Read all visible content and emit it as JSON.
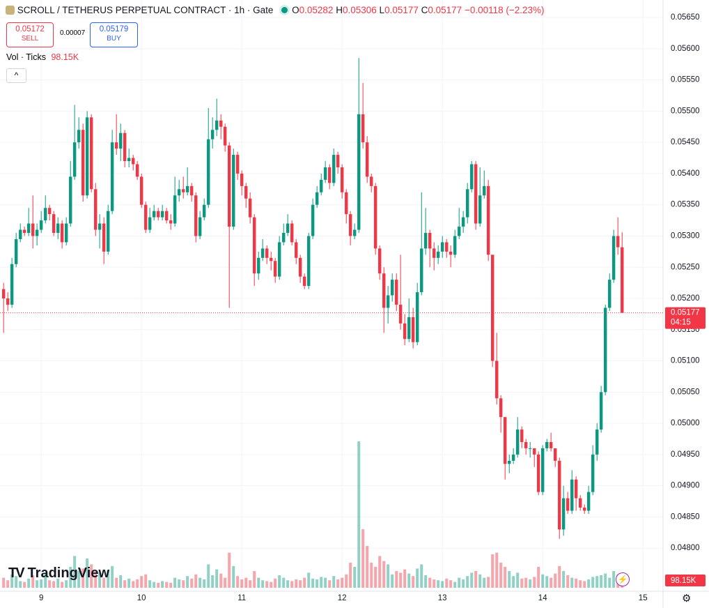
{
  "header": {
    "title": "SCROLL / TETHERUS PERPETUAL CONTRACT · 1h · Gate",
    "o_key": "O",
    "o": "0.05282",
    "h_key": "H",
    "h": "0.05306",
    "l_key": "L",
    "l": "0.05177",
    "c_key": "C",
    "c": "0.05177",
    "change": "−0.00118 (−2.23%)"
  },
  "trade": {
    "sell_price": "0.05172",
    "sell": "SELL",
    "spread": "0.00007",
    "buy_price": "0.05179",
    "buy": "BUY"
  },
  "volume_legend": {
    "label": "Vol · Ticks",
    "value": "98.15K"
  },
  "countdown": "04:15",
  "logo": "TradingView",
  "chart_data": {
    "type": "candlestick",
    "up_color": "#089981",
    "down_color": "#f23645",
    "grid": true,
    "xlim": [
      8.589,
      15.2
    ],
    "xticks": [
      9,
      10,
      11,
      12,
      13,
      14,
      15
    ],
    "ylim": [
      0.04731,
      0.05678
    ],
    "yticks": [
      {
        "value": 0.048,
        "label": "0.04800"
      },
      {
        "value": 0.0485,
        "label": "0.04850"
      },
      {
        "value": 0.049,
        "label": "0.04900"
      },
      {
        "value": 0.0495,
        "label": "0.04950"
      },
      {
        "value": 0.05,
        "label": "0.05000"
      },
      {
        "value": 0.0505,
        "label": "0.05050"
      },
      {
        "value": 0.051,
        "label": "0.05100"
      },
      {
        "value": 0.0515,
        "label": "0.05150"
      },
      {
        "value": 0.052,
        "label": "0.05200"
      },
      {
        "value": 0.0525,
        "label": "0.05250"
      },
      {
        "value": 0.053,
        "label": "0.05300"
      },
      {
        "value": 0.0535,
        "label": "0.05350"
      },
      {
        "value": 0.054,
        "label": "0.05400"
      },
      {
        "value": 0.0545,
        "label": "0.05450"
      },
      {
        "value": 0.055,
        "label": "0.05500"
      },
      {
        "value": 0.0555,
        "label": "0.05550"
      },
      {
        "value": 0.056,
        "label": "0.05600"
      },
      {
        "value": 0.0565,
        "label": "0.05650"
      }
    ],
    "x": [
      8.625,
      8.667,
      8.708,
      8.75,
      8.792,
      8.833,
      8.875,
      8.917,
      8.958,
      9,
      9.042,
      9.083,
      9.125,
      9.167,
      9.208,
      9.25,
      9.292,
      9.333,
      9.375,
      9.417,
      9.458,
      9.5,
      9.542,
      9.583,
      9.625,
      9.667,
      9.708,
      9.75,
      9.792,
      9.833,
      9.875,
      9.917,
      9.958,
      10,
      10.042,
      10.083,
      10.125,
      10.167,
      10.208,
      10.25,
      10.292,
      10.333,
      10.375,
      10.417,
      10.458,
      10.5,
      10.542,
      10.583,
      10.625,
      10.667,
      10.708,
      10.75,
      10.792,
      10.833,
      10.875,
      10.917,
      10.958,
      11,
      11.042,
      11.083,
      11.125,
      11.167,
      11.208,
      11.25,
      11.292,
      11.333,
      11.375,
      11.417,
      11.458,
      11.5,
      11.542,
      11.583,
      11.625,
      11.667,
      11.708,
      11.75,
      11.792,
      11.833,
      11.875,
      11.917,
      11.958,
      12,
      12.042,
      12.083,
      12.125,
      12.167,
      12.208,
      12.25,
      12.292,
      12.333,
      12.375,
      12.417,
      12.458,
      12.5,
      12.542,
      12.583,
      12.625,
      12.667,
      12.708,
      12.75,
      12.792,
      12.833,
      12.875,
      12.917,
      12.958,
      13,
      13.042,
      13.083,
      13.125,
      13.167,
      13.208,
      13.25,
      13.292,
      13.333,
      13.375,
      13.417,
      13.458,
      13.5,
      13.542,
      13.583,
      13.625,
      13.667,
      13.708,
      13.75,
      13.792,
      13.833,
      13.875,
      13.917,
      13.958,
      14,
      14.042,
      14.083,
      14.125,
      14.167,
      14.208,
      14.25,
      14.292,
      14.333,
      14.375,
      14.417,
      14.458,
      14.5,
      14.542,
      14.583,
      14.625,
      14.667,
      14.708,
      14.75,
      14.792
    ],
    "ohlc": [
      [
        0.05215,
        0.05225,
        0.05145,
        0.052
      ],
      [
        0.052,
        0.0521,
        0.0518,
        0.0519
      ],
      [
        0.0519,
        0.05265,
        0.05185,
        0.05255
      ],
      [
        0.05255,
        0.05305,
        0.0525,
        0.05295
      ],
      [
        0.05295,
        0.0532,
        0.0529,
        0.0531
      ],
      [
        0.0531,
        0.05315,
        0.053,
        0.05305
      ],
      [
        0.05305,
        0.05345,
        0.053,
        0.0532
      ],
      [
        0.0532,
        0.05365,
        0.0528,
        0.053
      ],
      [
        0.053,
        0.0532,
        0.05285,
        0.0531
      ],
      [
        0.0531,
        0.0534,
        0.05305,
        0.05325
      ],
      [
        0.05325,
        0.05365,
        0.0532,
        0.05345
      ],
      [
        0.05345,
        0.0535,
        0.05325,
        0.05335
      ],
      [
        0.05335,
        0.0534,
        0.053,
        0.05305
      ],
      [
        0.05305,
        0.0533,
        0.05295,
        0.0532
      ],
      [
        0.0532,
        0.05325,
        0.0528,
        0.0529
      ],
      [
        0.0529,
        0.0533,
        0.05285,
        0.0532
      ],
      [
        0.0532,
        0.0542,
        0.05315,
        0.05395
      ],
      [
        0.05395,
        0.0551,
        0.0539,
        0.0545
      ],
      [
        0.0545,
        0.0549,
        0.0544,
        0.0547
      ],
      [
        0.0547,
        0.0548,
        0.05355,
        0.05365
      ],
      [
        0.05365,
        0.055,
        0.0536,
        0.0549
      ],
      [
        0.0549,
        0.05495,
        0.0537,
        0.05375
      ],
      [
        0.05375,
        0.05385,
        0.053,
        0.0531
      ],
      [
        0.0531,
        0.05335,
        0.0528,
        0.0532
      ],
      [
        0.0532,
        0.0533,
        0.05255,
        0.05275
      ],
      [
        0.05275,
        0.0535,
        0.0527,
        0.0534
      ],
      [
        0.0534,
        0.0547,
        0.05335,
        0.0545
      ],
      [
        0.0545,
        0.05495,
        0.0543,
        0.0544
      ],
      [
        0.0544,
        0.0548,
        0.0542,
        0.05465
      ],
      [
        0.05465,
        0.0547,
        0.0541,
        0.0542
      ],
      [
        0.0542,
        0.0544,
        0.0541,
        0.05425
      ],
      [
        0.05425,
        0.0543,
        0.05405,
        0.05415
      ],
      [
        0.05415,
        0.0542,
        0.0539,
        0.05395
      ],
      [
        0.05395,
        0.054,
        0.05345,
        0.0535
      ],
      [
        0.0535,
        0.05355,
        0.05305,
        0.0531
      ],
      [
        0.0531,
        0.05345,
        0.05305,
        0.0533
      ],
      [
        0.0533,
        0.0535,
        0.05325,
        0.0534
      ],
      [
        0.0534,
        0.05345,
        0.05325,
        0.0533
      ],
      [
        0.0533,
        0.0535,
        0.05325,
        0.0534
      ],
      [
        0.0534,
        0.05345,
        0.0532,
        0.05325
      ],
      [
        0.05325,
        0.05335,
        0.0531,
        0.0532
      ],
      [
        0.0532,
        0.05395,
        0.05315,
        0.05365
      ],
      [
        0.05365,
        0.0539,
        0.05355,
        0.05375
      ],
      [
        0.05375,
        0.05395,
        0.0536,
        0.0537
      ],
      [
        0.0537,
        0.0541,
        0.05365,
        0.0538
      ],
      [
        0.0538,
        0.05385,
        0.05355,
        0.05365
      ],
      [
        0.05365,
        0.0537,
        0.0529,
        0.053
      ],
      [
        0.053,
        0.0534,
        0.05295,
        0.0533
      ],
      [
        0.0533,
        0.0536,
        0.05325,
        0.0535
      ],
      [
        0.0535,
        0.05505,
        0.05345,
        0.05455
      ],
      [
        0.05455,
        0.0549,
        0.0544,
        0.0547
      ],
      [
        0.0547,
        0.0552,
        0.0546,
        0.05485
      ],
      [
        0.05485,
        0.05495,
        0.05455,
        0.05475
      ],
      [
        0.05475,
        0.0548,
        0.05435,
        0.05445
      ],
      [
        0.05445,
        0.0545,
        0.05185,
        0.05315
      ],
      [
        0.05315,
        0.0544,
        0.0531,
        0.0543
      ],
      [
        0.0543,
        0.05435,
        0.0539,
        0.054
      ],
      [
        0.054,
        0.05405,
        0.05365,
        0.0538
      ],
      [
        0.0538,
        0.05385,
        0.05345,
        0.0536
      ],
      [
        0.0536,
        0.0537,
        0.0532,
        0.0533
      ],
      [
        0.0533,
        0.05335,
        0.0522,
        0.0524
      ],
      [
        0.0524,
        0.05275,
        0.0523,
        0.05265
      ],
      [
        0.05265,
        0.05295,
        0.0526,
        0.0528
      ],
      [
        0.0528,
        0.05285,
        0.05255,
        0.05265
      ],
      [
        0.05265,
        0.05275,
        0.05245,
        0.0526
      ],
      [
        0.0526,
        0.05265,
        0.05225,
        0.05235
      ],
      [
        0.05235,
        0.053,
        0.0523,
        0.0529
      ],
      [
        0.0529,
        0.0532,
        0.05285,
        0.05305
      ],
      [
        0.05305,
        0.05335,
        0.053,
        0.0532
      ],
      [
        0.0532,
        0.05325,
        0.05285,
        0.0529
      ],
      [
        0.0529,
        0.05295,
        0.05255,
        0.05265
      ],
      [
        0.05265,
        0.0527,
        0.05225,
        0.05235
      ],
      [
        0.05235,
        0.0524,
        0.05215,
        0.0522
      ],
      [
        0.0522,
        0.05305,
        0.05215,
        0.053
      ],
      [
        0.053,
        0.0536,
        0.05295,
        0.0535
      ],
      [
        0.0535,
        0.0538,
        0.05345,
        0.0537
      ],
      [
        0.0537,
        0.054,
        0.05365,
        0.0539
      ],
      [
        0.0539,
        0.0542,
        0.05385,
        0.0541
      ],
      [
        0.0541,
        0.05415,
        0.05375,
        0.05385
      ],
      [
        0.05385,
        0.0544,
        0.0538,
        0.0543
      ],
      [
        0.0543,
        0.05435,
        0.054,
        0.0541
      ],
      [
        0.0541,
        0.05415,
        0.0536,
        0.0537
      ],
      [
        0.0537,
        0.05375,
        0.0532,
        0.05335
      ],
      [
        0.05335,
        0.0534,
        0.05285,
        0.053
      ],
      [
        0.053,
        0.0532,
        0.05295,
        0.0531
      ],
      [
        0.0531,
        0.05585,
        0.05305,
        0.05495
      ],
      [
        0.05495,
        0.05545,
        0.0544,
        0.0545
      ],
      [
        0.0545,
        0.0546,
        0.05385,
        0.05395
      ],
      [
        0.05395,
        0.054,
        0.0537,
        0.0538
      ],
      [
        0.0538,
        0.05385,
        0.0527,
        0.0528
      ],
      [
        0.0528,
        0.05285,
        0.0523,
        0.0524
      ],
      [
        0.0524,
        0.0525,
        0.05145,
        0.05185
      ],
      [
        0.05185,
        0.0522,
        0.0516,
        0.05205
      ],
      [
        0.05205,
        0.0524,
        0.05195,
        0.0523
      ],
      [
        0.0523,
        0.0524,
        0.0518,
        0.0519
      ],
      [
        0.0519,
        0.0527,
        0.0515,
        0.0516
      ],
      [
        0.0516,
        0.05175,
        0.05125,
        0.05135
      ],
      [
        0.05135,
        0.052,
        0.0513,
        0.0517
      ],
      [
        0.0517,
        0.05185,
        0.0512,
        0.0513
      ],
      [
        0.0513,
        0.05225,
        0.05125,
        0.0521
      ],
      [
        0.0521,
        0.0537,
        0.05205,
        0.0528
      ],
      [
        0.0528,
        0.05345,
        0.0527,
        0.05305
      ],
      [
        0.05305,
        0.0531,
        0.0525,
        0.0528
      ],
      [
        0.0528,
        0.0529,
        0.05245,
        0.05265
      ],
      [
        0.05265,
        0.05285,
        0.05255,
        0.05275
      ],
      [
        0.05275,
        0.053,
        0.05265,
        0.0529
      ],
      [
        0.0529,
        0.05295,
        0.05265,
        0.05275
      ],
      [
        0.05275,
        0.05285,
        0.0525,
        0.0527
      ],
      [
        0.0527,
        0.0531,
        0.05265,
        0.053
      ],
      [
        0.053,
        0.05345,
        0.05295,
        0.05315
      ],
      [
        0.05315,
        0.0534,
        0.05305,
        0.0533
      ],
      [
        0.0533,
        0.05385,
        0.0532,
        0.05375
      ],
      [
        0.05375,
        0.0542,
        0.0537,
        0.05415
      ],
      [
        0.05415,
        0.0542,
        0.0531,
        0.0532
      ],
      [
        0.0532,
        0.0541,
        0.05315,
        0.05365
      ],
      [
        0.05365,
        0.05405,
        0.0536,
        0.0538
      ],
      [
        0.0538,
        0.0539,
        0.0526,
        0.0527
      ],
      [
        0.0527,
        0.0527,
        0.0509,
        0.051
      ],
      [
        0.051,
        0.05145,
        0.0503,
        0.0504
      ],
      [
        0.0504,
        0.05045,
        0.04985,
        0.0501
      ],
      [
        0.0501,
        0.0501,
        0.0491,
        0.04935
      ],
      [
        0.04935,
        0.0495,
        0.0492,
        0.0494
      ],
      [
        0.0494,
        0.0496,
        0.04935,
        0.0495
      ],
      [
        0.0495,
        0.0501,
        0.04945,
        0.0499
      ],
      [
        0.0499,
        0.04995,
        0.0496,
        0.0497
      ],
      [
        0.0497,
        0.04975,
        0.0495,
        0.0496
      ],
      [
        0.0496,
        0.0497,
        0.04945,
        0.0496
      ],
      [
        0.0496,
        0.0496,
        0.0493,
        0.0495
      ],
      [
        0.0495,
        0.04955,
        0.04885,
        0.0489
      ],
      [
        0.0489,
        0.04965,
        0.04885,
        0.0496
      ],
      [
        0.0496,
        0.04975,
        0.04955,
        0.0497
      ],
      [
        0.0497,
        0.04985,
        0.04955,
        0.0496
      ],
      [
        0.0496,
        0.0496,
        0.0493,
        0.0494
      ],
      [
        0.0494,
        0.04945,
        0.04815,
        0.0483
      ],
      [
        0.0483,
        0.049,
        0.0482,
        0.0488
      ],
      [
        0.0488,
        0.0489,
        0.04855,
        0.0486
      ],
      [
        0.0486,
        0.04925,
        0.04855,
        0.0491
      ],
      [
        0.0491,
        0.04915,
        0.0486,
        0.0488
      ],
      [
        0.0488,
        0.04885,
        0.0486,
        0.04865
      ],
      [
        0.04865,
        0.0487,
        0.04855,
        0.0486
      ],
      [
        0.0486,
        0.049,
        0.04855,
        0.0489
      ],
      [
        0.0489,
        0.04965,
        0.04885,
        0.0495
      ],
      [
        0.0495,
        0.05,
        0.0494,
        0.0499
      ],
      [
        0.0499,
        0.0506,
        0.04985,
        0.0505
      ],
      [
        0.0505,
        0.0519,
        0.05045,
        0.05185
      ],
      [
        0.05185,
        0.0524,
        0.0518,
        0.0523
      ],
      [
        0.0523,
        0.0531,
        0.05225,
        0.053
      ],
      [
        0.053,
        0.0533,
        0.0527,
        0.05282
      ],
      [
        0.05282,
        0.05306,
        0.05177,
        0.05177
      ]
    ],
    "volume": {
      "values": [
        120,
        90,
        160,
        140,
        80,
        70,
        110,
        150,
        90,
        100,
        170,
        90,
        80,
        110,
        70,
        90,
        250,
        380,
        200,
        230,
        350,
        280,
        200,
        180,
        120,
        210,
        260,
        120,
        150,
        90,
        110,
        80,
        100,
        140,
        160,
        90,
        70,
        60,
        80,
        70,
        60,
        120,
        100,
        90,
        140,
        110,
        160,
        120,
        100,
        280,
        150,
        220,
        170,
        120,
        420,
        260,
        140,
        100,
        120,
        90,
        200,
        120,
        90,
        80,
        70,
        110,
        150,
        120,
        90,
        80,
        100,
        90,
        120,
        180,
        110,
        100,
        130,
        120,
        90,
        140,
        100,
        120,
        160,
        300,
        250,
        1750,
        700,
        500,
        300,
        250,
        380,
        320,
        280,
        160,
        200,
        180,
        220,
        170,
        140,
        230,
        280,
        150,
        120,
        100,
        90,
        80,
        110,
        90,
        70,
        120,
        100,
        140,
        180,
        200,
        160,
        120,
        130,
        400,
        420,
        300,
        250,
        200,
        140,
        180,
        110,
        120,
        100,
        130,
        250,
        160,
        140,
        120,
        170,
        260,
        200,
        150,
        120,
        110,
        90,
        80,
        100,
        130,
        140,
        150,
        170,
        120,
        200,
        160,
        98.15
      ]
    }
  }
}
